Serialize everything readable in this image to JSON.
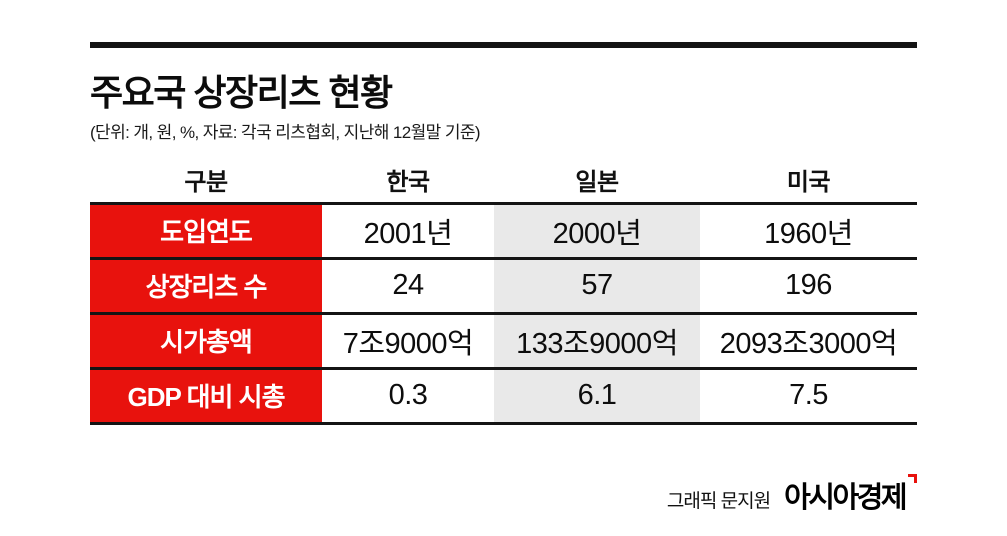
{
  "colors": {
    "red": "#e8120d",
    "gray-col": "#e9e9e9",
    "line": "#141414"
  },
  "header": {
    "title": "주요국 상장리츠 현황",
    "subtitle": "(단위: 개, 원, %, 자료: 각국 리츠협회, 지난해 12월말 기준)"
  },
  "table": {
    "columns": [
      "구분",
      "한국",
      "일본",
      "미국"
    ],
    "rows": [
      {
        "label": "도입연도",
        "korea": "2001년",
        "japan": "2000년",
        "usa": "1960년"
      },
      {
        "label": "상장리츠 수",
        "korea": "24",
        "japan": "57",
        "usa": "196"
      },
      {
        "label": "시가총액",
        "korea": "7조9000억",
        "japan": "133조9000억",
        "usa": "2093조3000억"
      },
      {
        "label": "GDP 대비 시총",
        "korea": "0.3",
        "japan": "6.1",
        "usa": "7.5"
      }
    ]
  },
  "footer": {
    "credit": "그래픽 문지원",
    "brand": "아시아경제"
  },
  "chart_data": {
    "type": "table",
    "title": "주요국 상장리츠 현황",
    "subtitle": "(단위: 개, 원, %, 자료: 각국 리츠협회, 지난해 12월말 기준)",
    "columns": [
      "구분",
      "한국",
      "일본",
      "미국"
    ],
    "rows": [
      [
        "도입연도",
        "2001년",
        "2000년",
        "1960년"
      ],
      [
        "상장리츠 수",
        "24",
        "57",
        "196"
      ],
      [
        "시가총액",
        "7조9000억",
        "133조9000억",
        "2093조3000억"
      ],
      [
        "GDP 대비 시총",
        "0.3",
        "6.1",
        "7.5"
      ]
    ],
    "notes": {
      "highlighted_column": "일본 (gray background)",
      "row_header_style": "red background, white bold text"
    }
  }
}
